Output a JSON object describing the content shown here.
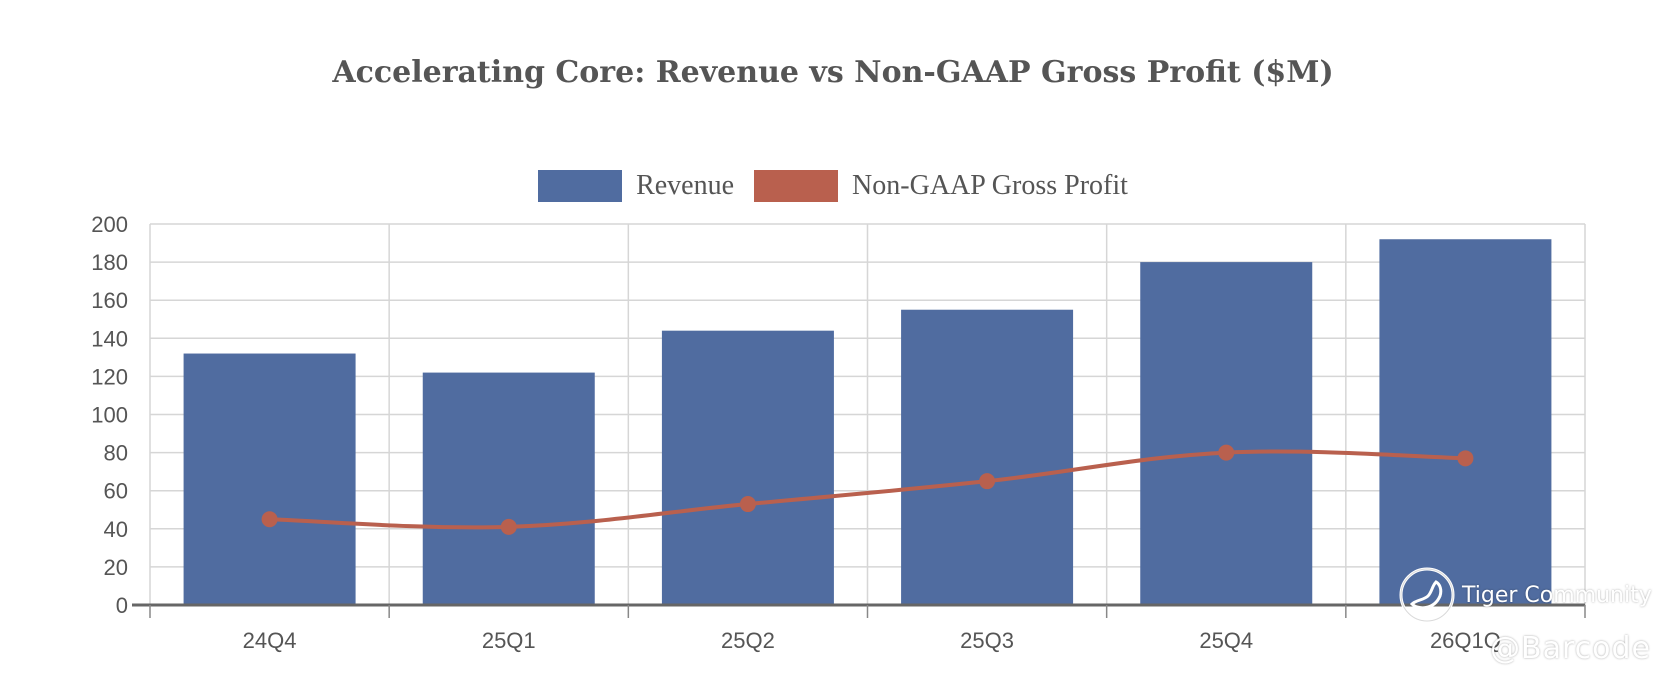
{
  "chart_data": {
    "type": "bar",
    "title": "Accelerating Core: Revenue vs Non-GAAP Gross Profit ($M)",
    "categories": [
      "24Q4",
      "25Q1",
      "25Q2",
      "25Q3",
      "25Q4",
      "26Q1Q"
    ],
    "series": [
      {
        "name": "Revenue",
        "type": "bar",
        "color": "#506ca0",
        "values": [
          132,
          122,
          144,
          155,
          180,
          192
        ]
      },
      {
        "name": "Non-GAAP Gross Profit",
        "type": "line",
        "color": "#b9604e",
        "values": [
          45,
          41,
          53,
          65,
          80,
          77
        ]
      }
    ],
    "ylim": [
      0,
      200
    ],
    "yticks": [
      "0",
      "20",
      "40",
      "60",
      "80",
      "100",
      "120",
      "140",
      "160",
      "180",
      "200"
    ],
    "grid": true,
    "legend_position": "top-center"
  },
  "watermark": {
    "community_text": "Tiger Community",
    "handle_text": "@Barcode",
    "logo_icon": "tiger-community-logo-icon"
  }
}
